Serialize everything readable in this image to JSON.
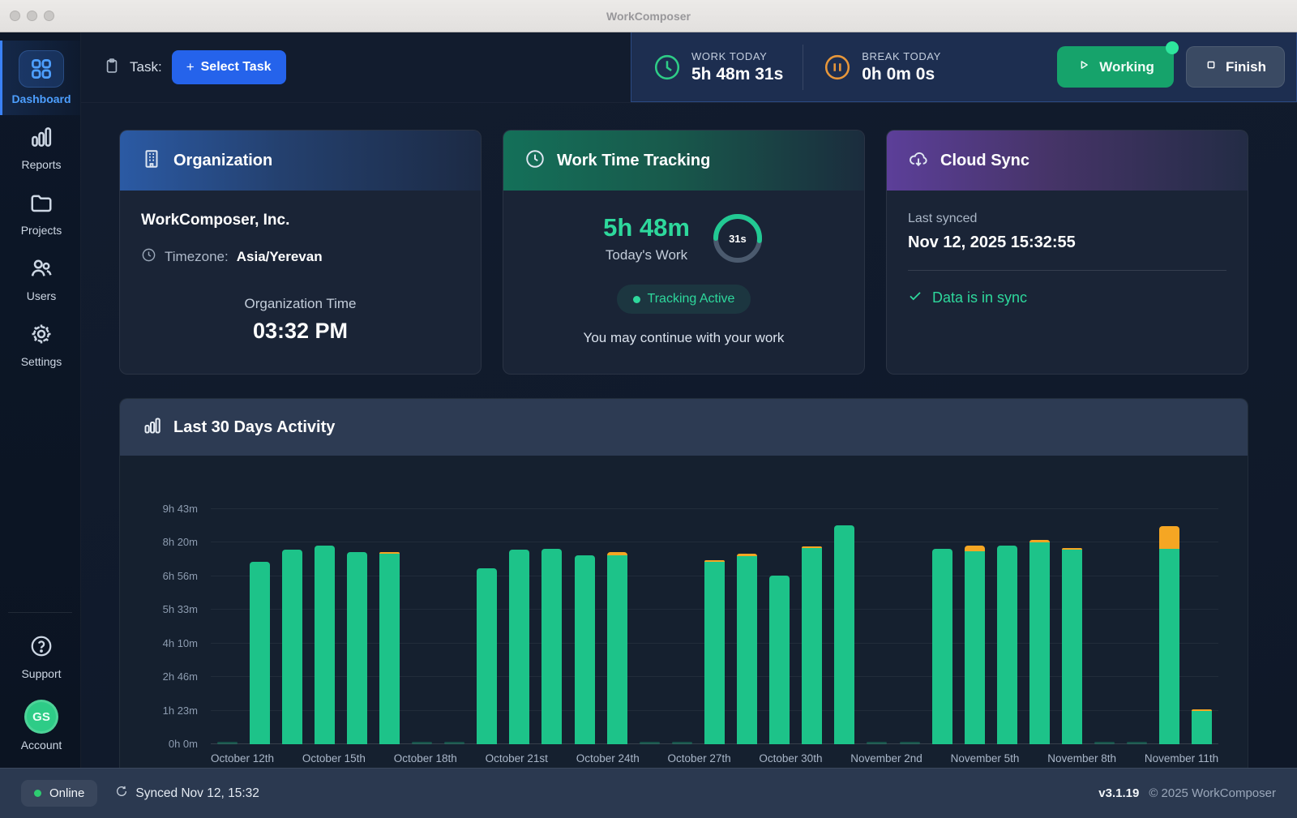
{
  "window": {
    "title": "WorkComposer"
  },
  "topbar": {
    "task_label": "Task:",
    "select_task": {
      "plus": "+",
      "label": "Select Task"
    },
    "work_today": {
      "label": "WORK TODAY",
      "value": "5h 48m 31s"
    },
    "break_today": {
      "label": "BREAK TODAY",
      "value": "0h 0m 0s"
    },
    "working_button": "Working",
    "finish_button": "Finish"
  },
  "sidebar": {
    "items": [
      {
        "label": "Dashboard",
        "active": true
      },
      {
        "label": "Reports",
        "active": false
      },
      {
        "label": "Projects",
        "active": false
      },
      {
        "label": "Users",
        "active": false
      },
      {
        "label": "Settings",
        "active": false
      }
    ],
    "support_label": "Support",
    "account": {
      "label": "Account",
      "initials": "GS"
    }
  },
  "cards": {
    "organization": {
      "title": "Organization",
      "company": "WorkComposer, Inc.",
      "timezone_label": "Timezone:",
      "timezone": "Asia/Yerevan",
      "org_time_label": "Organization Time",
      "org_time": "03:32 PM"
    },
    "work_tracking": {
      "title": "Work Time Tracking",
      "time": "5h 48m",
      "time_sub": "Today's Work",
      "seconds": "31s",
      "seconds_of_minute": 31,
      "badge": "Tracking Active",
      "message": "You may continue with your work"
    },
    "cloud_sync": {
      "title": "Cloud Sync",
      "last_synced_label": "Last synced",
      "last_synced": "Nov 12, 2025 15:32:55",
      "status": "Data is in sync"
    }
  },
  "chart_data": {
    "type": "bar",
    "stacked": true,
    "title": "Last 30 Days Activity",
    "ylabel": "",
    "xlabel": "",
    "grid": "horizontal",
    "legend": "none",
    "ylim_minutes": [
      0,
      640
    ],
    "y_ticks": [
      {
        "label": "0h 0m",
        "minutes": 0
      },
      {
        "label": "1h 23m",
        "minutes": 83
      },
      {
        "label": "2h 46m",
        "minutes": 166
      },
      {
        "label": "4h 10m",
        "minutes": 250
      },
      {
        "label": "5h 33m",
        "minutes": 333
      },
      {
        "label": "6h 56m",
        "minutes": 416
      },
      {
        "label": "8h 20m",
        "minutes": 500
      },
      {
        "label": "9h 43m",
        "minutes": 583
      }
    ],
    "series_names": [
      "work",
      "overtime"
    ],
    "colors": {
      "work": "#1dc389",
      "overtime": "#f5a623"
    },
    "days": [
      {
        "label": "October 12th",
        "work_m": 0,
        "overtime_m": 0
      },
      {
        "work_m": 452,
        "overtime_m": 0
      },
      {
        "work_m": 482,
        "overtime_m": 0
      },
      {
        "label": "October 15th",
        "work_m": 493,
        "overtime_m": 0
      },
      {
        "work_m": 476,
        "overtime_m": 0
      },
      {
        "work_m": 472,
        "overtime_m": 5
      },
      {
        "label": "October 18th",
        "work_m": 0,
        "overtime_m": 0
      },
      {
        "work_m": 0,
        "overtime_m": 0
      },
      {
        "work_m": 437,
        "overtime_m": 0
      },
      {
        "label": "October 21st",
        "work_m": 483,
        "overtime_m": 0
      },
      {
        "work_m": 485,
        "overtime_m": 0
      },
      {
        "work_m": 468,
        "overtime_m": 0
      },
      {
        "label": "October 24th",
        "work_m": 468,
        "overtime_m": 9
      },
      {
        "work_m": 0,
        "overtime_m": 0
      },
      {
        "work_m": 0,
        "overtime_m": 0
      },
      {
        "label": "October 27th",
        "work_m": 452,
        "overtime_m": 4
      },
      {
        "work_m": 467,
        "overtime_m": 5
      },
      {
        "work_m": 419,
        "overtime_m": 0
      },
      {
        "label": "October 30th",
        "work_m": 486,
        "overtime_m": 4
      },
      {
        "work_m": 543,
        "overtime_m": 0
      },
      {
        "work_m": 0,
        "overtime_m": 0
      },
      {
        "label": "November 2nd",
        "work_m": 0,
        "overtime_m": 0
      },
      {
        "work_m": 484,
        "overtime_m": 0
      },
      {
        "work_m": 479,
        "overtime_m": 14
      },
      {
        "label": "November 5th",
        "work_m": 493,
        "overtime_m": 0
      },
      {
        "work_m": 501,
        "overtime_m": 5
      },
      {
        "work_m": 482,
        "overtime_m": 4
      },
      {
        "label": "November 8th",
        "work_m": 0,
        "overtime_m": 0
      },
      {
        "work_m": 0,
        "overtime_m": 0
      },
      {
        "work_m": 484,
        "overtime_m": 57
      },
      {
        "label": "November 11th",
        "work_m": 83,
        "overtime_m": 4
      }
    ]
  },
  "statusbar": {
    "online": "Online",
    "synced": "Synced Nov 12, 15:32",
    "version": "v3.1.19",
    "copyright": "© 2025 WorkComposer"
  },
  "colors": {
    "accent_green": "#1dc389",
    "bright_green": "#2ed89c",
    "orange": "#f5a623",
    "accent_blue": "#2563eb",
    "sidebar_active": "#4d9fff",
    "ring_track": "#4b5a6e"
  }
}
